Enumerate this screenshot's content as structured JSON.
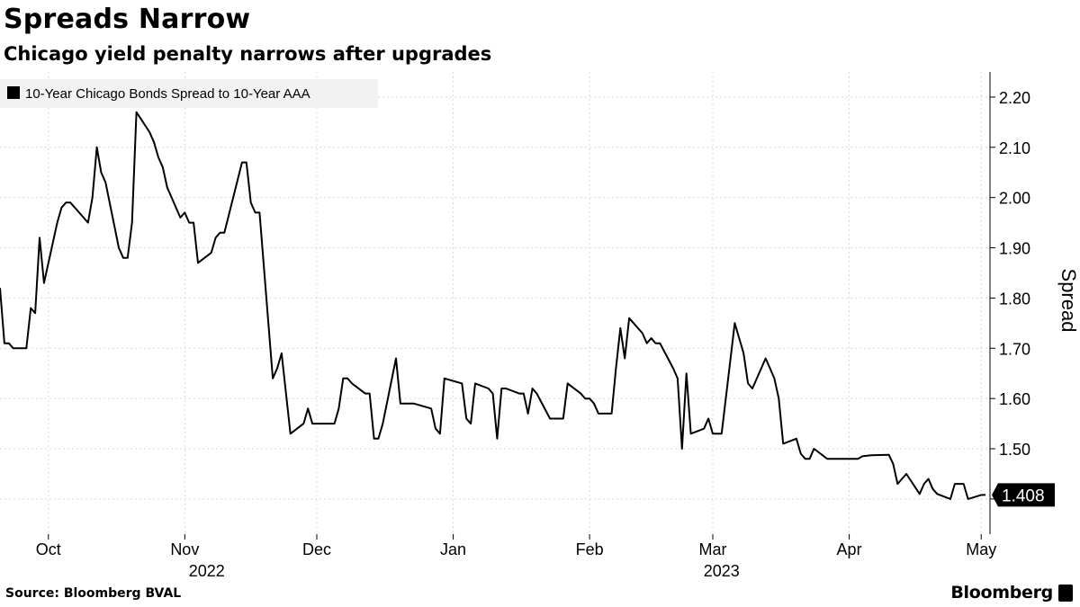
{
  "header": {
    "title": "Spreads Narrow",
    "subtitle": "Chicago yield penalty narrows after upgrades"
  },
  "footer": {
    "source": "Source: Bloomberg BVAL",
    "brand": "Bloomberg"
  },
  "icons": {
    "brand_mark": "bloomberg-terminal-icon"
  },
  "colors": {
    "line": "#000000",
    "grid": "#d9d9d9",
    "legend_bg": "#f2f2f2"
  },
  "chart_data": {
    "type": "line",
    "ylabel": "Spread",
    "ylim": [
      1.33,
      2.25
    ],
    "yticks": [
      1.4,
      1.5,
      1.6,
      1.7,
      1.8,
      1.9,
      2.0,
      2.1,
      2.2
    ],
    "ytick_labels": [
      "",
      "1.50",
      "1.60",
      "1.70",
      "1.80",
      "1.90",
      "2.00",
      "2.10",
      "2.20"
    ],
    "xlim": [
      "2022-09-20",
      "2023-05-03"
    ],
    "xticks": [
      {
        "date": "2022-10-01",
        "label": "Oct"
      },
      {
        "date": "2022-11-01",
        "label": "Nov"
      },
      {
        "date": "2022-12-01",
        "label": "Dec"
      },
      {
        "date": "2023-01-01",
        "label": "Jan"
      },
      {
        "date": "2023-02-01",
        "label": "Feb"
      },
      {
        "date": "2023-03-01",
        "label": "Mar"
      },
      {
        "date": "2023-04-01",
        "label": "Apr"
      },
      {
        "date": "2023-05-01",
        "label": "May"
      }
    ],
    "year_labels": [
      {
        "date": "2022-11-06",
        "label": "2022"
      },
      {
        "date": "2023-03-03",
        "label": "2023"
      }
    ],
    "last_value_label": "1.408",
    "grid": true,
    "legend_position": "top-left",
    "series": [
      {
        "name": "10-Year Chicago Bonds Spread to 10-Year AAA",
        "points": [
          [
            "2022-09-20",
            1.82
          ],
          [
            "2022-09-21",
            1.71
          ],
          [
            "2022-09-22",
            1.71
          ],
          [
            "2022-09-23",
            1.7
          ],
          [
            "2022-09-26",
            1.7
          ],
          [
            "2022-09-27",
            1.78
          ],
          [
            "2022-09-28",
            1.77
          ],
          [
            "2022-09-29",
            1.92
          ],
          [
            "2022-09-30",
            1.83
          ],
          [
            "2022-10-03",
            1.95
          ],
          [
            "2022-10-04",
            1.98
          ],
          [
            "2022-10-05",
            1.99
          ],
          [
            "2022-10-06",
            1.99
          ],
          [
            "2022-10-07",
            1.98
          ],
          [
            "2022-10-10",
            1.95
          ],
          [
            "2022-10-11",
            2.0
          ],
          [
            "2022-10-12",
            2.1
          ],
          [
            "2022-10-13",
            2.05
          ],
          [
            "2022-10-14",
            2.03
          ],
          [
            "2022-10-17",
            1.9
          ],
          [
            "2022-10-18",
            1.88
          ],
          [
            "2022-10-19",
            1.88
          ],
          [
            "2022-10-20",
            1.95
          ],
          [
            "2022-10-21",
            2.17
          ],
          [
            "2022-10-24",
            2.13
          ],
          [
            "2022-10-25",
            2.11
          ],
          [
            "2022-10-26",
            2.08
          ],
          [
            "2022-10-27",
            2.06
          ],
          [
            "2022-10-28",
            2.02
          ],
          [
            "2022-10-31",
            1.96
          ],
          [
            "2022-11-01",
            1.97
          ],
          [
            "2022-11-02",
            1.95
          ],
          [
            "2022-11-03",
            1.95
          ],
          [
            "2022-11-04",
            1.87
          ],
          [
            "2022-11-07",
            1.89
          ],
          [
            "2022-11-08",
            1.92
          ],
          [
            "2022-11-09",
            1.93
          ],
          [
            "2022-11-10",
            1.93
          ],
          [
            "2022-11-14",
            2.07
          ],
          [
            "2022-11-15",
            2.07
          ],
          [
            "2022-11-16",
            1.99
          ],
          [
            "2022-11-17",
            1.97
          ],
          [
            "2022-11-18",
            1.97
          ],
          [
            "2022-11-21",
            1.64
          ],
          [
            "2022-11-22",
            1.66
          ],
          [
            "2022-11-23",
            1.69
          ],
          [
            "2022-11-25",
            1.53
          ],
          [
            "2022-11-28",
            1.55
          ],
          [
            "2022-11-29",
            1.58
          ],
          [
            "2022-11-30",
            1.55
          ],
          [
            "2022-12-01",
            1.55
          ],
          [
            "2022-12-02",
            1.55
          ],
          [
            "2022-12-05",
            1.55
          ],
          [
            "2022-12-06",
            1.58
          ],
          [
            "2022-12-07",
            1.64
          ],
          [
            "2022-12-08",
            1.64
          ],
          [
            "2022-12-09",
            1.63
          ],
          [
            "2022-12-12",
            1.61
          ],
          [
            "2022-12-13",
            1.61
          ],
          [
            "2022-12-14",
            1.52
          ],
          [
            "2022-12-15",
            1.52
          ],
          [
            "2022-12-16",
            1.55
          ],
          [
            "2022-12-19",
            1.68
          ],
          [
            "2022-12-20",
            1.59
          ],
          [
            "2022-12-21",
            1.59
          ],
          [
            "2022-12-22",
            1.59
          ],
          [
            "2022-12-23",
            1.59
          ],
          [
            "2022-12-27",
            1.58
          ],
          [
            "2022-12-28",
            1.54
          ],
          [
            "2022-12-29",
            1.53
          ],
          [
            "2022-12-30",
            1.64
          ],
          [
            "2023-01-03",
            1.63
          ],
          [
            "2023-01-04",
            1.56
          ],
          [
            "2023-01-05",
            1.55
          ],
          [
            "2023-01-06",
            1.63
          ],
          [
            "2023-01-09",
            1.62
          ],
          [
            "2023-01-10",
            1.61
          ],
          [
            "2023-01-11",
            1.52
          ],
          [
            "2023-01-12",
            1.62
          ],
          [
            "2023-01-13",
            1.62
          ],
          [
            "2023-01-16",
            1.61
          ],
          [
            "2023-01-17",
            1.61
          ],
          [
            "2023-01-18",
            1.57
          ],
          [
            "2023-01-19",
            1.62
          ],
          [
            "2023-01-20",
            1.61
          ],
          [
            "2023-01-23",
            1.56
          ],
          [
            "2023-01-24",
            1.56
          ],
          [
            "2023-01-25",
            1.56
          ],
          [
            "2023-01-26",
            1.56
          ],
          [
            "2023-01-27",
            1.63
          ],
          [
            "2023-01-30",
            1.61
          ],
          [
            "2023-01-31",
            1.6
          ],
          [
            "2023-02-01",
            1.6
          ],
          [
            "2023-02-02",
            1.59
          ],
          [
            "2023-02-03",
            1.57
          ],
          [
            "2023-02-06",
            1.57
          ],
          [
            "2023-02-07",
            1.66
          ],
          [
            "2023-02-08",
            1.74
          ],
          [
            "2023-02-09",
            1.68
          ],
          [
            "2023-02-10",
            1.76
          ],
          [
            "2023-02-13",
            1.73
          ],
          [
            "2023-02-14",
            1.71
          ],
          [
            "2023-02-15",
            1.72
          ],
          [
            "2023-02-16",
            1.71
          ],
          [
            "2023-02-17",
            1.71
          ],
          [
            "2023-02-20",
            1.66
          ],
          [
            "2023-02-21",
            1.64
          ],
          [
            "2023-02-22",
            1.5
          ],
          [
            "2023-02-23",
            1.65
          ],
          [
            "2023-02-24",
            1.53
          ],
          [
            "2023-02-27",
            1.54
          ],
          [
            "2023-02-28",
            1.56
          ],
          [
            "2023-03-01",
            1.53
          ],
          [
            "2023-03-02",
            1.53
          ],
          [
            "2023-03-03",
            1.53
          ],
          [
            "2023-03-06",
            1.75
          ],
          [
            "2023-03-07",
            1.72
          ],
          [
            "2023-03-08",
            1.69
          ],
          [
            "2023-03-09",
            1.63
          ],
          [
            "2023-03-10",
            1.62
          ],
          [
            "2023-03-13",
            1.68
          ],
          [
            "2023-03-14",
            1.66
          ],
          [
            "2023-03-15",
            1.64
          ],
          [
            "2023-03-16",
            1.6
          ],
          [
            "2023-03-17",
            1.51
          ],
          [
            "2023-03-20",
            1.52
          ],
          [
            "2023-03-21",
            1.49
          ],
          [
            "2023-03-22",
            1.48
          ],
          [
            "2023-03-23",
            1.48
          ],
          [
            "2023-03-24",
            1.5
          ],
          [
            "2023-03-27",
            1.48
          ],
          [
            "2023-03-28",
            1.48
          ],
          [
            "2023-03-29",
            1.48
          ],
          [
            "2023-03-30",
            1.48
          ],
          [
            "2023-03-31",
            1.48
          ],
          [
            "2023-04-03",
            1.48
          ],
          [
            "2023-04-04",
            1.485
          ],
          [
            "2023-04-06",
            1.487
          ],
          [
            "2023-04-10",
            1.488
          ],
          [
            "2023-04-11",
            1.47
          ],
          [
            "2023-04-12",
            1.43
          ],
          [
            "2023-04-13",
            1.44
          ],
          [
            "2023-04-14",
            1.45
          ],
          [
            "2023-04-17",
            1.41
          ],
          [
            "2023-04-18",
            1.43
          ],
          [
            "2023-04-19",
            1.44
          ],
          [
            "2023-04-20",
            1.42
          ],
          [
            "2023-04-21",
            1.41
          ],
          [
            "2023-04-24",
            1.4
          ],
          [
            "2023-04-25",
            1.43
          ],
          [
            "2023-04-26",
            1.43
          ],
          [
            "2023-04-27",
            1.43
          ],
          [
            "2023-04-28",
            1.4
          ],
          [
            "2023-05-01",
            1.408
          ],
          [
            "2023-05-02",
            1.408
          ]
        ]
      }
    ]
  }
}
